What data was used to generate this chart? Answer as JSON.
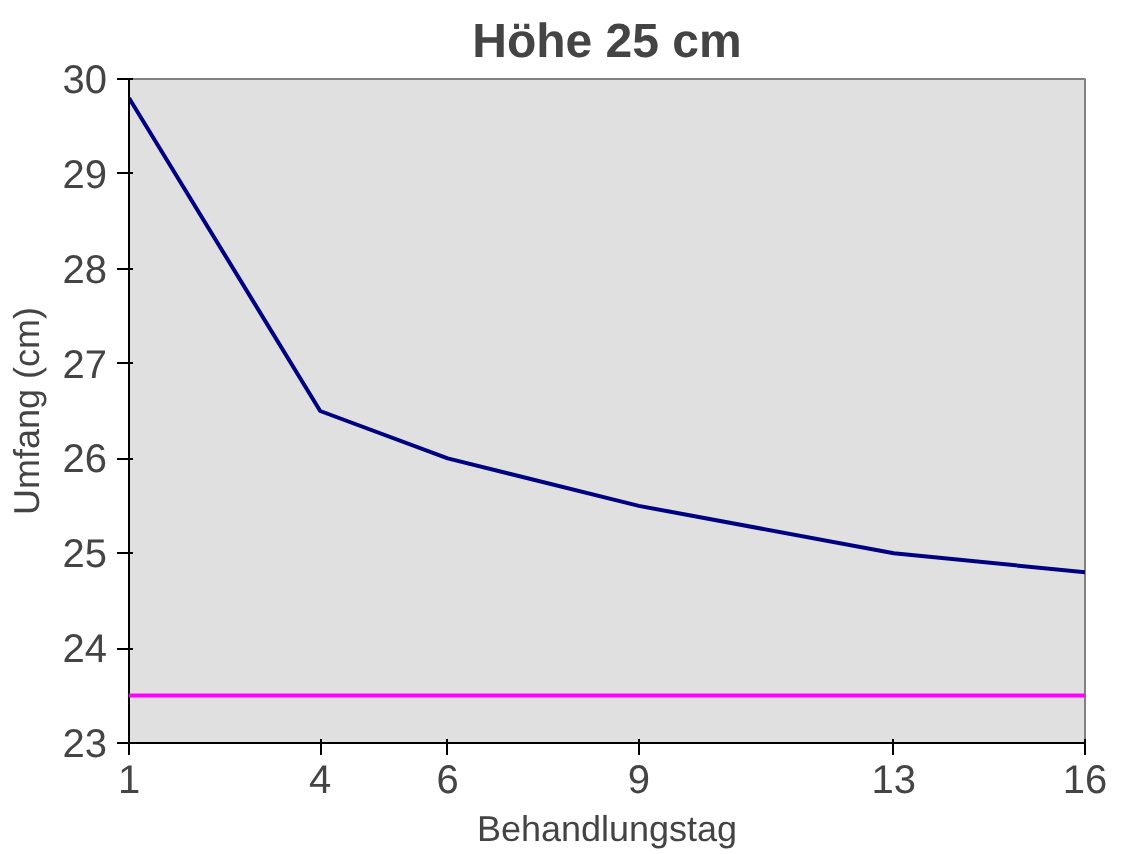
{
  "chart_data": {
    "type": "line",
    "title": "Höhe 25 cm",
    "xlabel": "Behandlungstag",
    "ylabel": "Umfang (cm)",
    "x": [
      1,
      4,
      6,
      9,
      13,
      16
    ],
    "series": [
      {
        "color": "#000080",
        "values": [
          29.8,
          26.5,
          26.0,
          25.5,
          25.0,
          24.8
        ]
      }
    ],
    "xlim": [
      1,
      16
    ],
    "xticks": [
      1,
      4,
      6,
      9,
      13,
      16
    ],
    "ylim": [
      23,
      30
    ],
    "yticks": [
      23,
      24,
      25,
      26,
      27,
      28,
      29,
      30
    ],
    "ref_lines": [
      {
        "axis": "y",
        "value": 23.5,
        "color": "#ff00ff"
      }
    ],
    "grid": false,
    "marker": "none",
    "line_style": "solid"
  }
}
